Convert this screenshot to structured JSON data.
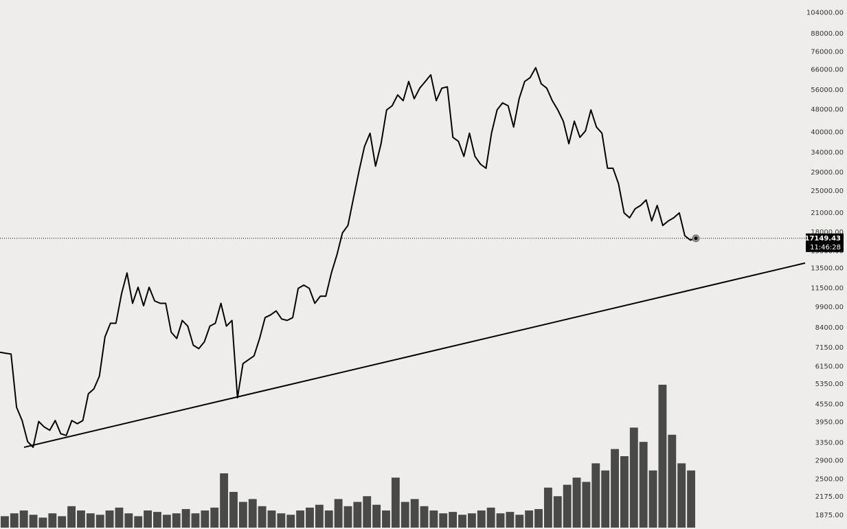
{
  "chart_data": {
    "type": "line",
    "log_scale": true,
    "color": "#000000",
    "volume_color": "#2b2b2b",
    "ylim": [
      1700,
      116000
    ],
    "yticks": [
      {
        "value": 104000,
        "label": "104000.00"
      },
      {
        "value": 88000,
        "label": "88000.00"
      },
      {
        "value": 76000,
        "label": "76000.00"
      },
      {
        "value": 66000,
        "label": "66000.00"
      },
      {
        "value": 56000,
        "label": "56000.00"
      },
      {
        "value": 48000,
        "label": "48000.00"
      },
      {
        "value": 40000,
        "label": "40000.00"
      },
      {
        "value": 34000,
        "label": "34000.00"
      },
      {
        "value": 29000,
        "label": "29000.00"
      },
      {
        "value": 25000,
        "label": "25000.00"
      },
      {
        "value": 21000,
        "label": "21000.00"
      },
      {
        "value": 18000,
        "label": "18000.00"
      },
      {
        "value": 15500,
        "label": "15500.00"
      },
      {
        "value": 13500,
        "label": "13500.00"
      },
      {
        "value": 11500,
        "label": "11500.00"
      },
      {
        "value": 9900,
        "label": "9900.00"
      },
      {
        "value": 8400,
        "label": "8400.00"
      },
      {
        "value": 7150,
        "label": "7150.00"
      },
      {
        "value": 6150,
        "label": "6150.00"
      },
      {
        "value": 5350,
        "label": "5350.00"
      },
      {
        "value": 4550,
        "label": "4550.00"
      },
      {
        "value": 3950,
        "label": "3950.00"
      },
      {
        "value": 3350,
        "label": "3350.00"
      },
      {
        "value": 2900,
        "label": "2900.00"
      },
      {
        "value": 2500,
        "label": "2500.00"
      },
      {
        "value": 2175,
        "label": "2175.00"
      },
      {
        "value": 1875,
        "label": "1875.00"
      }
    ],
    "series": [
      {
        "values": [
          6900,
          6850,
          6800,
          4450,
          4000,
          3380,
          3230,
          3970,
          3800,
          3700,
          4000,
          3600,
          3550,
          4000,
          3900,
          4000,
          4950,
          5150,
          5700,
          7800,
          8700,
          8700,
          11000,
          13000,
          10200,
          11600,
          10000,
          11600,
          10400,
          10200,
          10200,
          8100,
          7700,
          8900,
          8500,
          7300,
          7100,
          7500,
          8500,
          8700,
          10200,
          8500,
          8900,
          4800,
          6300,
          6500,
          6700,
          7700,
          9100,
          9300,
          9600,
          9000,
          8900,
          9100,
          11500,
          11800,
          11500,
          10200,
          10800,
          10800,
          13000,
          15000,
          17900,
          19000,
          23600,
          29300,
          35700,
          39700,
          30500,
          36500,
          47800,
          49400,
          53900,
          51500,
          60000,
          52300,
          56900,
          60000,
          63300,
          51500,
          56900,
          57500,
          38400,
          37200,
          33000,
          39700,
          33000,
          31000,
          30000,
          39700,
          47800,
          50600,
          49400,
          41700,
          52300,
          60000,
          61900,
          67000,
          58900,
          56900,
          51500,
          47800,
          43700,
          36500,
          43700,
          38400,
          40400,
          47800,
          41700,
          39700,
          30000,
          30000,
          26500,
          21000,
          20200,
          21700,
          22300,
          23300,
          19700,
          22300,
          19000,
          19700,
          20200,
          21000,
          17500,
          16900,
          17149.43
        ]
      }
    ],
    "volume": [
      8,
      10,
      12,
      9,
      7,
      10,
      8,
      15,
      12,
      10,
      9,
      12,
      14,
      10,
      8,
      12,
      11,
      9,
      10,
      13,
      10,
      12,
      14,
      38,
      25,
      18,
      20,
      15,
      12,
      10,
      9,
      12,
      14,
      16,
      12,
      20,
      15,
      18,
      22,
      16,
      12,
      35,
      18,
      20,
      15,
      12,
      10,
      11,
      9,
      10,
      12,
      14,
      10,
      11,
      9,
      12,
      13,
      28,
      22,
      30,
      35,
      32,
      45,
      40,
      55,
      50,
      70,
      60,
      40,
      100,
      65,
      45,
      40
    ],
    "trendline": [
      3230,
      14070
    ],
    "last_price": 17149.43,
    "countdown": "11:46:28"
  }
}
